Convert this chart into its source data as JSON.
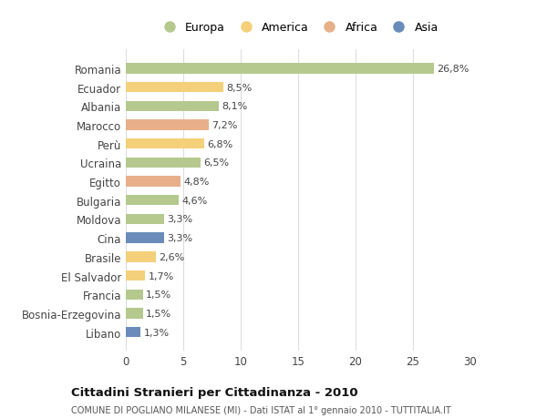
{
  "countries": [
    "Romania",
    "Ecuador",
    "Albania",
    "Marocco",
    "Perù",
    "Ucraina",
    "Egitto",
    "Bulgaria",
    "Moldova",
    "Cina",
    "Brasile",
    "El Salvador",
    "Francia",
    "Bosnia-Erzegovina",
    "Libano"
  ],
  "values": [
    26.8,
    8.5,
    8.1,
    7.2,
    6.8,
    6.5,
    4.8,
    4.6,
    3.3,
    3.3,
    2.6,
    1.7,
    1.5,
    1.5,
    1.3
  ],
  "labels": [
    "26,8%",
    "8,5%",
    "8,1%",
    "7,2%",
    "6,8%",
    "6,5%",
    "4,8%",
    "4,6%",
    "3,3%",
    "3,3%",
    "2,6%",
    "1,7%",
    "1,5%",
    "1,5%",
    "1,3%"
  ],
  "continents": [
    "Europa",
    "America",
    "Europa",
    "Africa",
    "America",
    "Europa",
    "Africa",
    "Europa",
    "Europa",
    "Asia",
    "America",
    "America",
    "Europa",
    "Europa",
    "Asia"
  ],
  "colors": {
    "Europa": "#b5c98e",
    "America": "#f5d07a",
    "Africa": "#e8b08a",
    "Asia": "#6b8cba"
  },
  "legend_order": [
    "Europa",
    "America",
    "Africa",
    "Asia"
  ],
  "title": "Cittadini Stranieri per Cittadinanza - 2010",
  "subtitle": "COMUNE DI POGLIANO MILANESE (MI) - Dati ISTAT al 1° gennaio 2010 - TUTTITALIA.IT",
  "xlim": [
    0,
    30
  ],
  "xticks": [
    0,
    5,
    10,
    15,
    20,
    25,
    30
  ],
  "background_color": "#ffffff",
  "grid_color": "#dddddd"
}
